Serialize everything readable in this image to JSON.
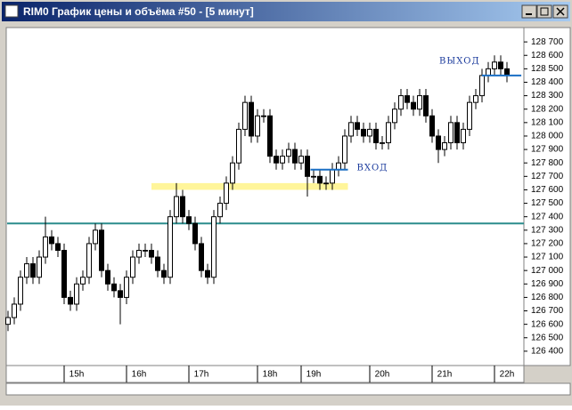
{
  "window": {
    "title": "RIM0 График цены и объёма #50 - [5 минут]"
  },
  "chart_data": {
    "type": "candlestick",
    "categories": [
      null,
      null,
      null,
      null,
      null,
      null,
      null,
      null,
      null,
      null,
      null,
      "15h",
      null,
      null,
      null,
      null,
      null,
      null,
      null,
      null,
      null,
      "16h",
      null,
      null,
      null,
      null,
      null,
      null,
      null,
      null,
      null,
      "17h",
      null,
      null,
      null,
      null,
      null,
      null,
      null,
      null,
      null,
      null,
      "18h",
      null,
      null,
      null,
      null,
      null,
      null,
      "19h",
      null,
      null,
      null,
      null,
      null,
      null,
      null,
      null,
      null,
      null,
      "20h",
      null,
      null,
      null,
      null,
      null,
      null,
      null,
      null,
      null,
      "21h",
      null,
      null,
      null,
      null,
      null,
      null,
      null,
      null,
      null,
      "22h"
    ],
    "open": [
      126600,
      126650,
      126750,
      126950,
      127050,
      126950,
      127100,
      127250,
      127200,
      127150,
      126800,
      126750,
      126900,
      126950,
      127200,
      127300,
      127000,
      126900,
      126850,
      126800,
      126950,
      127100,
      127150,
      127150,
      127100,
      127000,
      126950,
      127400,
      127550,
      127400,
      127350,
      127200,
      127000,
      126950,
      127400,
      127500,
      127650,
      127800,
      128050,
      128250,
      128000,
      128150,
      128150,
      127850,
      127800,
      127850,
      127900,
      127800,
      127850,
      127700,
      127700,
      127650,
      127650,
      127750,
      127800,
      128000,
      128100,
      128050,
      128000,
      128050,
      127950,
      127950,
      128100,
      128200,
      128300,
      128250,
      128200,
      128300,
      128150,
      128000,
      127900,
      127950,
      128100,
      127950,
      128050,
      128250,
      128300,
      128450,
      128500,
      128550,
      128500
    ],
    "high": [
      126700,
      126800,
      127000,
      127100,
      127100,
      127150,
      127400,
      127300,
      127250,
      127200,
      126850,
      126950,
      127000,
      127250,
      127350,
      127350,
      127050,
      126950,
      126900,
      127000,
      127150,
      127200,
      127200,
      127200,
      127150,
      127050,
      127450,
      127650,
      127600,
      127450,
      127400,
      127250,
      127050,
      127450,
      127550,
      127700,
      127850,
      128100,
      128300,
      128300,
      128200,
      128200,
      128200,
      127900,
      127900,
      127950,
      127950,
      127900,
      127900,
      127750,
      127750,
      127700,
      127800,
      127850,
      128050,
      128150,
      128150,
      128100,
      128100,
      128100,
      128000,
      128150,
      128250,
      128350,
      128350,
      128300,
      128350,
      128350,
      128200,
      128050,
      128000,
      128150,
      128150,
      128100,
      128300,
      128350,
      128500,
      128550,
      128600,
      128600,
      128550
    ],
    "low": [
      126550,
      126600,
      126700,
      126900,
      126900,
      126900,
      127050,
      127150,
      127100,
      126750,
      126700,
      126700,
      126850,
      126900,
      127150,
      126950,
      126850,
      126800,
      126600,
      126750,
      126900,
      127050,
      127100,
      127050,
      126950,
      126900,
      126900,
      127350,
      127350,
      127300,
      127150,
      126950,
      126900,
      126900,
      127350,
      127450,
      127600,
      127750,
      128000,
      127950,
      127950,
      128100,
      127800,
      127750,
      127750,
      127800,
      127750,
      127750,
      127550,
      127650,
      127600,
      127600,
      127600,
      127700,
      127750,
      127950,
      128000,
      127950,
      127950,
      127900,
      127900,
      127900,
      128050,
      128150,
      128200,
      128150,
      128150,
      128100,
      127950,
      127800,
      127850,
      127900,
      127900,
      127900,
      128000,
      128200,
      128250,
      128400,
      128450,
      128450,
      128400
    ],
    "close": [
      126650,
      126750,
      126950,
      127050,
      126950,
      127100,
      127250,
      127200,
      127150,
      126800,
      126750,
      126900,
      126950,
      127200,
      127300,
      127000,
      126900,
      126850,
      126800,
      126950,
      127100,
      127150,
      127150,
      127100,
      127000,
      126950,
      127400,
      127550,
      127400,
      127350,
      127200,
      127000,
      126950,
      127400,
      127500,
      127650,
      127800,
      128050,
      128250,
      128000,
      128150,
      128150,
      127850,
      127800,
      127850,
      127900,
      127800,
      127850,
      127700,
      127700,
      127650,
      127650,
      127750,
      127800,
      128000,
      128100,
      128050,
      128000,
      128050,
      127950,
      127950,
      128100,
      128200,
      128300,
      128250,
      128200,
      128300,
      128150,
      128000,
      127900,
      127950,
      128100,
      127950,
      128050,
      128250,
      128300,
      128450,
      128500,
      128550,
      128500,
      128450
    ],
    "ylim": [
      126300,
      128800
    ],
    "yticks": [
      {
        "value": 126400,
        "label": "126 400"
      },
      {
        "value": 126500,
        "label": "126 500"
      },
      {
        "value": 126600,
        "label": "126 600"
      },
      {
        "value": 126700,
        "label": "126 700"
      },
      {
        "value": 126800,
        "label": "126 800"
      },
      {
        "value": 126900,
        "label": "126 900"
      },
      {
        "value": 127000,
        "label": "127 000"
      },
      {
        "value": 127100,
        "label": "127 100"
      },
      {
        "value": 127200,
        "label": "127 200"
      },
      {
        "value": 127300,
        "label": "127 300"
      },
      {
        "value": 127400,
        "label": "127 400"
      },
      {
        "value": 127500,
        "label": "127 500"
      },
      {
        "value": 127600,
        "label": "127 600"
      },
      {
        "value": 127700,
        "label": "127 700"
      },
      {
        "value": 127800,
        "label": "127 800"
      },
      {
        "value": 127900,
        "label": "127 900"
      },
      {
        "value": 128000,
        "label": "128 000"
      },
      {
        "value": 128100,
        "label": "128 100"
      },
      {
        "value": 128200,
        "label": "128 200"
      },
      {
        "value": 128300,
        "label": "128 300"
      },
      {
        "value": 128400,
        "label": "128 400"
      },
      {
        "value": 128500,
        "label": "128 500"
      },
      {
        "value": 128600,
        "label": "128 600"
      },
      {
        "value": 128700,
        "label": "128 700"
      }
    ],
    "levels": [
      {
        "value": 127350,
        "color": "#2a8c8c"
      }
    ],
    "zone": {
      "low": 127600,
      "high": 127650,
      "from": 23,
      "to": 54.5,
      "color": "#fff59a"
    },
    "markers": [
      {
        "label": "ВХОД",
        "value": 127750,
        "from": 48.5,
        "to": 54.5,
        "color": "#1a6fc4"
      },
      {
        "label": "ВЫХОД",
        "value": 128450,
        "from": 76,
        "to": 82.3,
        "color": "#1a6fc4"
      }
    ],
    "up_color": "#ffffff",
    "down_color": "#000000"
  }
}
